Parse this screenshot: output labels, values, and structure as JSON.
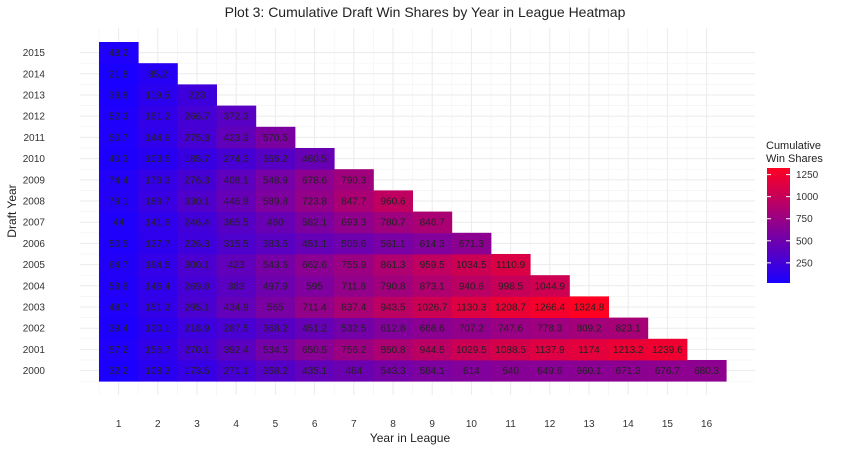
{
  "chart_data": {
    "type": "heatmap",
    "title": "Plot 3: Cumulative Draft Win Shares by Year in League Heatmap",
    "xlabel": "Year in League",
    "ylabel": "Draft Year",
    "x": [
      "1",
      "2",
      "3",
      "4",
      "5",
      "6",
      "7",
      "8",
      "9",
      "10",
      "11",
      "12",
      "13",
      "14",
      "15",
      "16"
    ],
    "y": [
      "2000",
      "2001",
      "2002",
      "2003",
      "2004",
      "2005",
      "2006",
      "2007",
      "2008",
      "2009",
      "2010",
      "2011",
      "2012",
      "2013",
      "2014",
      "2015"
    ],
    "values": [
      [
        "32.2",
        "108.3",
        "173.5",
        "271.1",
        "358.2",
        "435.1",
        "484",
        "543.3",
        "584.1",
        "614",
        "640",
        "649.6",
        "660.1",
        "671.3",
        "676.7",
        "680.3"
      ],
      [
        "57.2",
        "156.7",
        "270.1",
        "392.4",
        "534.5",
        "650.5",
        "756.2",
        "850.8",
        "944.5",
        "1029.5",
        "1088.5",
        "1137.9",
        "1174",
        "1213.2",
        "1239.6"
      ],
      [
        "39.4",
        "120.1",
        "218.9",
        "287.5",
        "368.2",
        "451.2",
        "532.5",
        "612.8",
        "668.6",
        "707.2",
        "747.6",
        "778.3",
        "809.2",
        "823.1"
      ],
      [
        "48.7",
        "151.3",
        "295.1",
        "434.9",
        "565",
        "711.4",
        "837.4",
        "943.5",
        "1026.7",
        "1130.3",
        "1208.7",
        "1266.4",
        "1324.8"
      ],
      [
        "58.8",
        "146.4",
        "269.8",
        "383",
        "497.9",
        "595",
        "711.8",
        "790.8",
        "873.1",
        "940.6",
        "998.5",
        "1044.9"
      ],
      [
        "64.7",
        "164.5",
        "300.1",
        "423",
        "543.6",
        "662.6",
        "755.9",
        "861.3",
        "959.5",
        "1034.5",
        "1110.9"
      ],
      [
        "50.5",
        "127.7",
        "226.3",
        "315.5",
        "383.5",
        "451.1",
        "505.6",
        "561.1",
        "614.3",
        "671.3"
      ],
      [
        "44",
        "141.6",
        "246.4",
        "365.5",
        "460",
        "582.1",
        "693.3",
        "780.7",
        "846.7"
      ],
      [
        "79.1",
        "189.7",
        "330.1",
        "446.9",
        "589.8",
        "723.8",
        "847.7",
        "960.6"
      ],
      [
        "74.4",
        "173.3",
        "276.3",
        "408.1",
        "548.9",
        "678.6",
        "790.3"
      ],
      [
        "40.3",
        "103.5",
        "185.7",
        "274.3",
        "365.2",
        "460.5"
      ],
      [
        "50.7",
        "144.6",
        "275.3",
        "423.3",
        "570.5"
      ],
      [
        "52.3",
        "151.2",
        "266.7",
        "372.3"
      ],
      [
        "33.8",
        "119.5",
        "223"
      ],
      [
        "21.8",
        "85.2"
      ],
      [
        "48.2"
      ]
    ],
    "legend": {
      "title_line1": "Cumulative",
      "title_line2": "Win Shares",
      "ticks": [
        "250",
        "500",
        "750",
        "1000",
        "1250"
      ],
      "min": 21.8,
      "max": 1324.8,
      "placement": "right"
    },
    "colors": {
      "low": "#1a00ff",
      "high": "#ff0022"
    },
    "grid": true
  }
}
